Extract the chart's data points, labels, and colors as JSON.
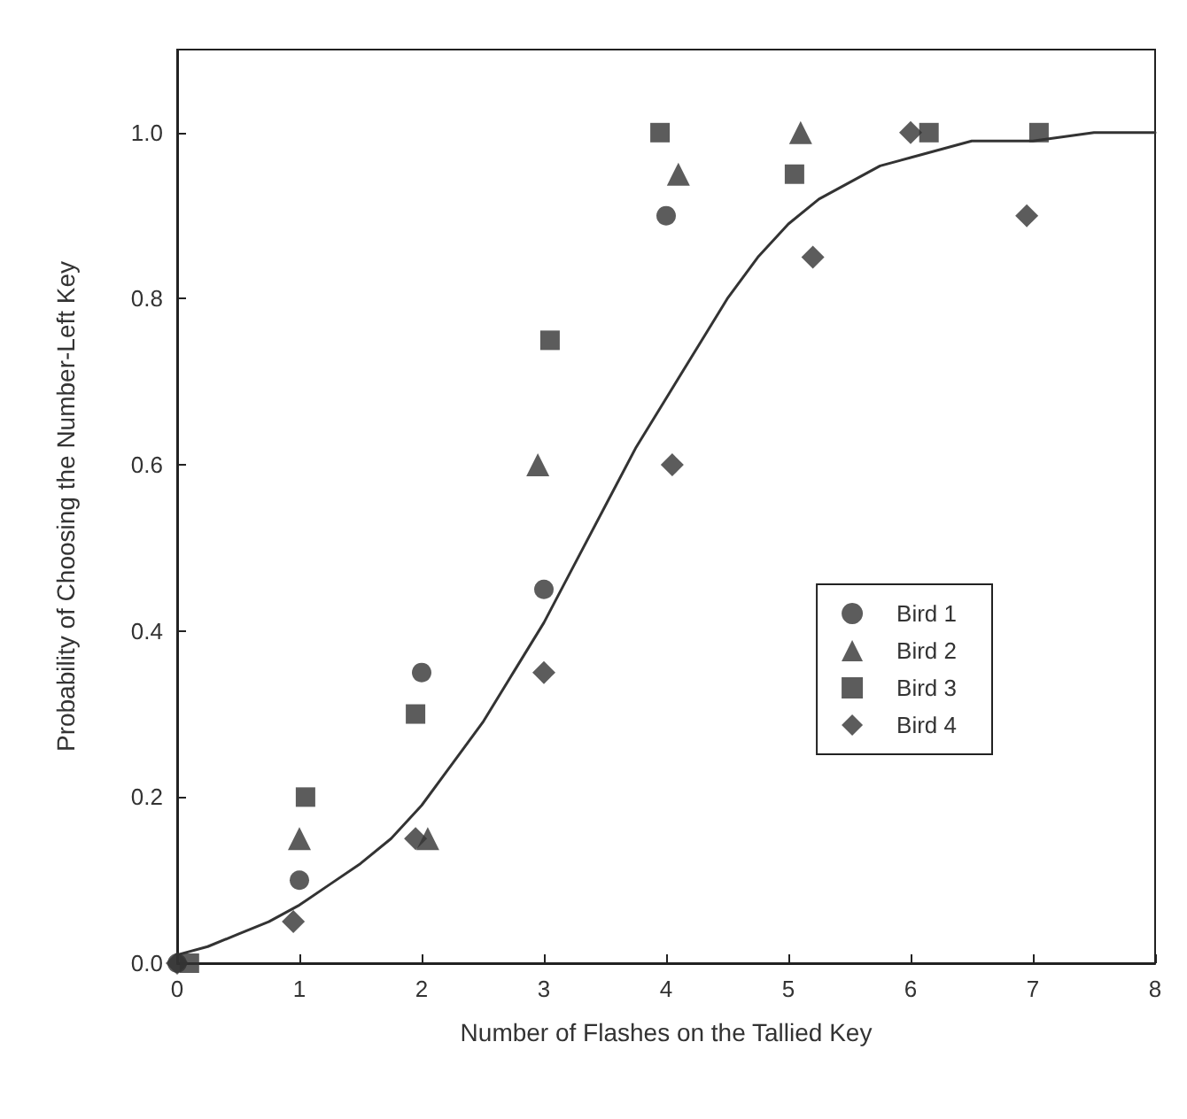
{
  "chart_data": {
    "type": "scatter",
    "xlabel": "Number of Flashes on the Tallied Key",
    "ylabel": "Probability of Choosing the Number-Left Key",
    "xlim": [
      0,
      8
    ],
    "xticks": [
      0,
      1,
      2,
      3,
      4,
      5,
      6,
      7,
      8
    ],
    "ylim": [
      0,
      1.1
    ],
    "yticks": [
      {
        "value": 0,
        "label": "0.0"
      },
      {
        "value": 0.2,
        "label": "0.2"
      },
      {
        "value": 0.4,
        "label": "0.4"
      },
      {
        "value": 0.6,
        "label": "0.6"
      },
      {
        "value": 0.8,
        "label": "0.8"
      },
      {
        "value": 1,
        "label": "1.0"
      }
    ],
    "grid": false,
    "legend": "right",
    "series": [
      {
        "name": "Bird 1",
        "color": "#333333",
        "marker": "circle",
        "x": [
          0,
          1,
          2,
          3,
          4
        ],
        "values": [
          0,
          0.1,
          0.35,
          0.45,
          0.9
        ]
      },
      {
        "name": "Bird 2",
        "color": "#333333",
        "marker": "triangle",
        "x": [
          1,
          2.05,
          2.95,
          4.1,
          5.1
        ],
        "values": [
          0.15,
          0.15,
          0.6,
          0.95,
          1.0
        ]
      },
      {
        "name": "Bird 3",
        "color": "#333333",
        "marker": "square",
        "x": [
          0.1,
          1.05,
          1.95,
          3.05,
          3.95,
          5.05,
          6.15,
          7.05
        ],
        "values": [
          0,
          0.2,
          0.3,
          0.75,
          1.0,
          0.95,
          1.0,
          1.0
        ]
      },
      {
        "name": "Bird 4",
        "color": "#333333",
        "marker": "diamond",
        "x": [
          0,
          0.95,
          1.95,
          3,
          4.05,
          5.2,
          6,
          6.95
        ],
        "values": [
          0,
          0.05,
          0.15,
          0.35,
          0.6,
          0.85,
          1.0,
          0.9
        ]
      },
      {
        "type": "line",
        "color": "#333333",
        "marker": "none",
        "line_style": "solid",
        "x": [
          0,
          0.25,
          0.5,
          0.75,
          1,
          1.25,
          1.5,
          1.75,
          2,
          2.25,
          2.5,
          2.75,
          3,
          3.25,
          3.5,
          3.75,
          4,
          4.25,
          4.5,
          4.75,
          5,
          5.25,
          5.5,
          5.75,
          6,
          6.5,
          7,
          7.5,
          8
        ],
        "values": [
          0.01,
          0.02,
          0.035,
          0.05,
          0.07,
          0.095,
          0.12,
          0.15,
          0.19,
          0.24,
          0.29,
          0.35,
          0.41,
          0.48,
          0.55,
          0.62,
          0.68,
          0.74,
          0.8,
          0.85,
          0.89,
          0.92,
          0.94,
          0.96,
          0.97,
          0.99,
          0.99,
          1.0,
          1.0
        ]
      }
    ]
  }
}
